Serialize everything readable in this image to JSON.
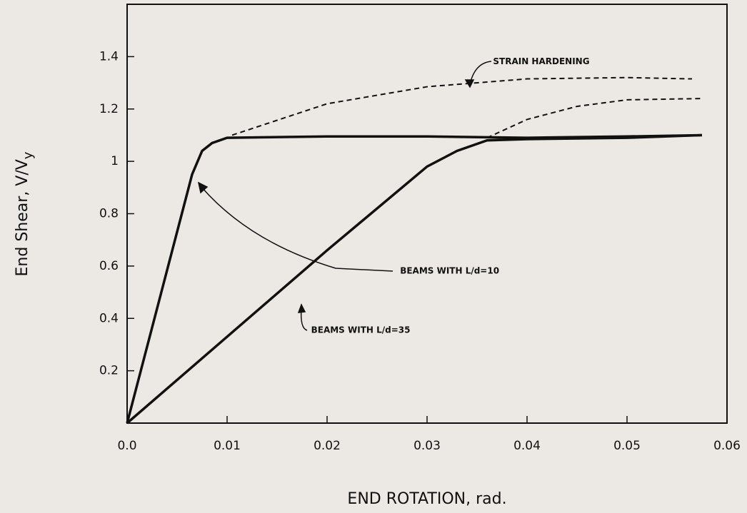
{
  "chart_data": {
    "type": "line",
    "xlabel": "END ROTATION, rad.",
    "ylabel": "End Shear, V/V",
    "ylabel_sub": "y",
    "xlim": [
      0,
      0.06
    ],
    "ylim": [
      0,
      1.6
    ],
    "xticks": [
      {
        "value": 0,
        "label": "0.0"
      },
      0.01,
      0.02,
      0.03,
      0.04,
      0.05,
      0.06
    ],
    "yticks": [
      0.2,
      0.4,
      0.6,
      0.8,
      1,
      1.2,
      1.4
    ],
    "series": [
      {
        "color": "#111111",
        "dashed": false,
        "x": [
          0,
          0.0065,
          0.0075,
          0.0085,
          0.01,
          0.02,
          0.03,
          0.04,
          0.05,
          0.0575
        ],
        "values": [
          0,
          0.95,
          1.04,
          1.07,
          1.09,
          1.095,
          1.095,
          1.09,
          1.095,
          1.1
        ]
      },
      {
        "color": "#111111",
        "dashed": false,
        "x": [
          0,
          0.01,
          0.02,
          0.03,
          0.033,
          0.036,
          0.04,
          0.05,
          0.0575
        ],
        "values": [
          0,
          0.33,
          0.66,
          0.98,
          1.04,
          1.08,
          1.085,
          1.09,
          1.1
        ]
      },
      {
        "color": "#111111",
        "dashed": true,
        "x": [
          0.0105,
          0.02,
          0.03,
          0.04,
          0.05,
          0.0565
        ],
        "values": [
          1.1,
          1.22,
          1.285,
          1.315,
          1.32,
          1.315
        ]
      },
      {
        "color": "#111111",
        "dashed": true,
        "x": [
          0.036,
          0.04,
          0.045,
          0.05,
          0.0575
        ],
        "values": [
          1.09,
          1.16,
          1.21,
          1.235,
          1.24
        ]
      }
    ],
    "annotations": [
      {
        "text": "STRAIN HARDENING",
        "x": 0.0366,
        "y": 1.38
      },
      {
        "text": "BEAMS WITH L/d=10",
        "x": 0.0273,
        "y": 0.58
      },
      {
        "text": "BEAMS WITH L/d=35",
        "x": 0.0184,
        "y": 0.354
      }
    ]
  }
}
